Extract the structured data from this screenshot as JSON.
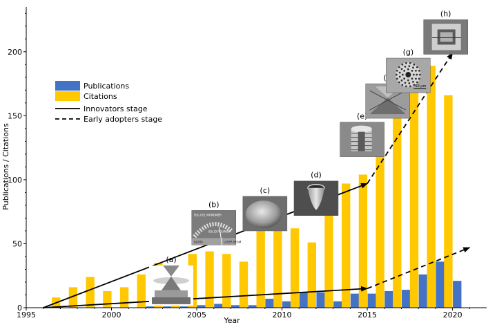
{
  "chart_data": {
    "type": "bar",
    "xlabel": "Year",
    "ylabel": "Publications / Citations",
    "xlim": [
      1995,
      2022
    ],
    "ylim": [
      0,
      235
    ],
    "x_ticks": [
      1995,
      2000,
      2005,
      2010,
      2015,
      2020
    ],
    "y_ticks": [
      0,
      50,
      100,
      150,
      200
    ],
    "legend_position": "left",
    "categories": [
      1997,
      1998,
      1999,
      2000,
      2001,
      2002,
      2003,
      2004,
      2005,
      2006,
      2007,
      2008,
      2009,
      2010,
      2011,
      2012,
      2013,
      2014,
      2015,
      2016,
      2017,
      2018,
      2019,
      2020,
      2021
    ],
    "series": [
      {
        "name": "Publications",
        "color": "#4472c4",
        "values": [
          0,
          0,
          0,
          0,
          0,
          1,
          1,
          1,
          2,
          3,
          2,
          2,
          7,
          5,
          12,
          12,
          5,
          11,
          11,
          13,
          14,
          26,
          36,
          21,
          0
        ]
      },
      {
        "name": "Citations",
        "color": "#ffc800",
        "values": [
          8,
          16,
          24,
          13,
          16,
          26,
          35,
          30,
          42,
          44,
          42,
          36,
          68,
          66,
          62,
          51,
          89,
          97,
          104,
          142,
          164,
          179,
          189,
          166,
          0
        ]
      }
    ],
    "trend_lines": [
      {
        "name": "Innovators stage",
        "style": "solid",
        "from": [
          1996,
          0
        ],
        "to": [
          2015,
          97
        ]
      },
      {
        "name": "Innovators stage",
        "style": "solid",
        "from": [
          1996,
          0
        ],
        "to": [
          2015,
          15
        ]
      },
      {
        "name": "Early adopters stage",
        "style": "dashed",
        "from": [
          2015,
          97
        ],
        "to": [
          2020,
          199
        ]
      },
      {
        "name": "Early adopters stage",
        "style": "dashed",
        "from": [
          2015,
          15
        ],
        "to": [
          2021,
          47
        ]
      }
    ],
    "legend": [
      "Publications",
      "Citations",
      "Innovators stage",
      "Early adopters stage"
    ],
    "insets": [
      {
        "label": "(a)",
        "year": 2003.5,
        "y": 33
      },
      {
        "label": "(b)",
        "year": 2006.0,
        "y": 76
      },
      {
        "label": "(c)",
        "year": 2009.0,
        "y": 87
      },
      {
        "label": "(d)",
        "year": 2012.0,
        "y": 99
      },
      {
        "label": "(e)",
        "year": 2014.7,
        "y": 145
      },
      {
        "label": "(f)",
        "year": 2016.2,
        "y": 175
      },
      {
        "label": "(g)",
        "year": 2017.4,
        "y": 195
      },
      {
        "label": "(h)",
        "year": 2019.6,
        "y": 225
      }
    ],
    "inset_texts": {
      "b_top": "SOL-GEL MONOMER",
      "b_mid": "SOLID POLYMER",
      "b_glass": "GLASS",
      "b_laser": "LASER BEAM",
      "g_scale": "50 µm"
    }
  }
}
